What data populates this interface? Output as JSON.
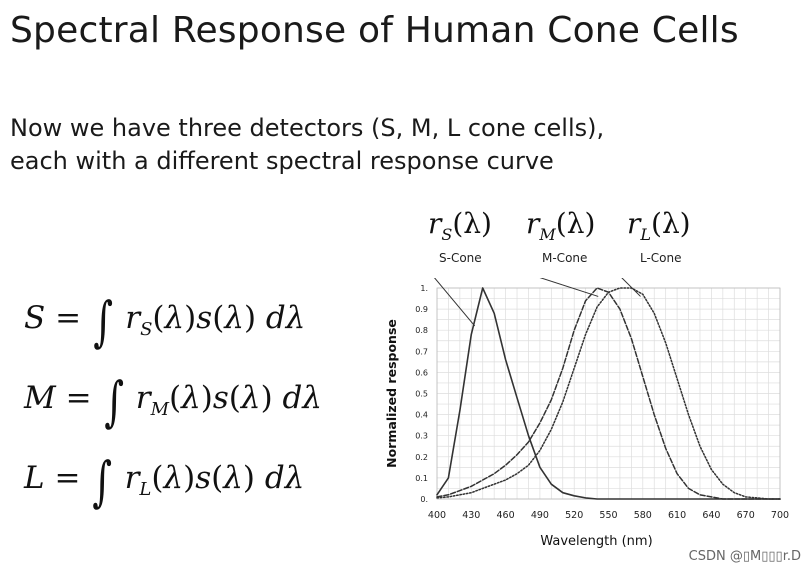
{
  "slide": {
    "title": "Spectral Response of Human Cone Cells",
    "subtitle_line1": "Now we have three detectors (S, M, L cone cells),",
    "subtitle_line2": "each with a different spectral response curve"
  },
  "formulas": [
    {
      "lhs": "S",
      "sub": "S"
    },
    {
      "lhs": "M",
      "sub": "M"
    },
    {
      "lhs": "L",
      "sub": "L"
    }
  ],
  "response_labels": [
    {
      "func": "r",
      "sub": "S",
      "arg": "(λ)",
      "cone": "S-Cone"
    },
    {
      "func": "r",
      "sub": "M",
      "arg": "(λ)",
      "cone": "M-Cone"
    },
    {
      "func": "r",
      "sub": "L",
      "arg": "(λ)",
      "cone": "L-Cone"
    }
  ],
  "chart_data": {
    "type": "line",
    "title": "",
    "xlabel": "Wavelength (nm)",
    "ylabel": "Normalized response",
    "xlim": [
      400,
      700
    ],
    "ylim": [
      0,
      1
    ],
    "x_ticks": [
      400,
      430,
      460,
      490,
      520,
      550,
      580,
      610,
      640,
      670,
      700
    ],
    "y_ticks": [
      0,
      0.1,
      0.2,
      0.3,
      0.4,
      0.5,
      0.6,
      0.7,
      0.8,
      0.9,
      1
    ],
    "y_tick_labels": [
      "0.",
      "0.1",
      "0.2",
      "0.3",
      "0.4",
      "0.5",
      "0.6",
      "0.7",
      "0.8",
      "0.9",
      "1."
    ],
    "grid": true,
    "x": [
      400,
      410,
      420,
      430,
      440,
      450,
      460,
      470,
      480,
      490,
      500,
      510,
      520,
      530,
      540,
      550,
      560,
      570,
      580,
      590,
      600,
      610,
      620,
      630,
      640,
      650,
      660,
      670,
      680,
      690,
      700
    ],
    "series": [
      {
        "name": "S-Cone",
        "style": "solid",
        "color": "#333333",
        "values": [
          0.02,
          0.1,
          0.42,
          0.78,
          1.0,
          0.88,
          0.66,
          0.48,
          0.3,
          0.15,
          0.07,
          0.03,
          0.015,
          0.005,
          0.0,
          0.0,
          0.0,
          0.0,
          0.0,
          0.0,
          0.0,
          0.0,
          0.0,
          0.0,
          0.0,
          0.0,
          0.0,
          0.0,
          0.0,
          0.0,
          0.0
        ]
      },
      {
        "name": "M-Cone",
        "style": "dashed",
        "color": "#333333",
        "values": [
          0.01,
          0.02,
          0.04,
          0.06,
          0.09,
          0.12,
          0.16,
          0.21,
          0.27,
          0.36,
          0.47,
          0.62,
          0.8,
          0.94,
          1.0,
          0.98,
          0.9,
          0.76,
          0.58,
          0.4,
          0.24,
          0.12,
          0.05,
          0.02,
          0.01,
          0.0,
          0.0,
          0.0,
          0.0,
          0.0,
          0.0
        ]
      },
      {
        "name": "L-Cone",
        "style": "dotted",
        "color": "#333333",
        "values": [
          0.005,
          0.01,
          0.02,
          0.03,
          0.05,
          0.07,
          0.09,
          0.12,
          0.16,
          0.23,
          0.33,
          0.46,
          0.62,
          0.78,
          0.91,
          0.98,
          1.0,
          1.0,
          0.97,
          0.88,
          0.74,
          0.57,
          0.4,
          0.25,
          0.14,
          0.07,
          0.03,
          0.01,
          0.005,
          0.0,
          0.0
        ]
      }
    ]
  },
  "watermark": "CSDN @▯M▯▯▯r.D"
}
